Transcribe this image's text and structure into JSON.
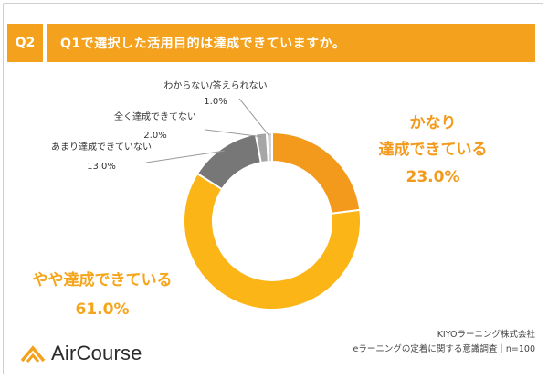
{
  "header": {
    "question_number": "Q2",
    "question_text": "Q1で選択した活用目的は達成できていますか。"
  },
  "chart_data": {
    "type": "pie",
    "donut": true,
    "categories": [
      "かなり達成できている",
      "やや達成できている",
      "あまり達成できていない",
      "全く達成できてない",
      "わからない/答えられない"
    ],
    "values": [
      23.0,
      61.0,
      13.0,
      2.0,
      1.0
    ],
    "labels": [
      {
        "lines": [
          "かなり",
          "達成できている"
        ],
        "value": "23.0%"
      },
      {
        "lines": [
          "やや達成できている"
        ],
        "value": "61.0%"
      },
      {
        "lines": [
          "あまり達成できていない"
        ],
        "value": "13.0%"
      },
      {
        "lines": [
          "全く達成できてない"
        ],
        "value": "2.0%"
      },
      {
        "lines": [
          "わからない/答えられない"
        ],
        "value": "1.0%"
      }
    ],
    "colors": [
      "#f39a1d",
      "#fbb516",
      "#777777",
      "#a6a6a6",
      "#d3d3d3"
    ]
  },
  "footer": {
    "company": "KIYOラーニング株式会社",
    "survey": "eラーニングの定着に関する意識調査｜n=100"
  },
  "logo": {
    "name": "AirCourse",
    "icon": "aircourse-chevron-logo"
  }
}
